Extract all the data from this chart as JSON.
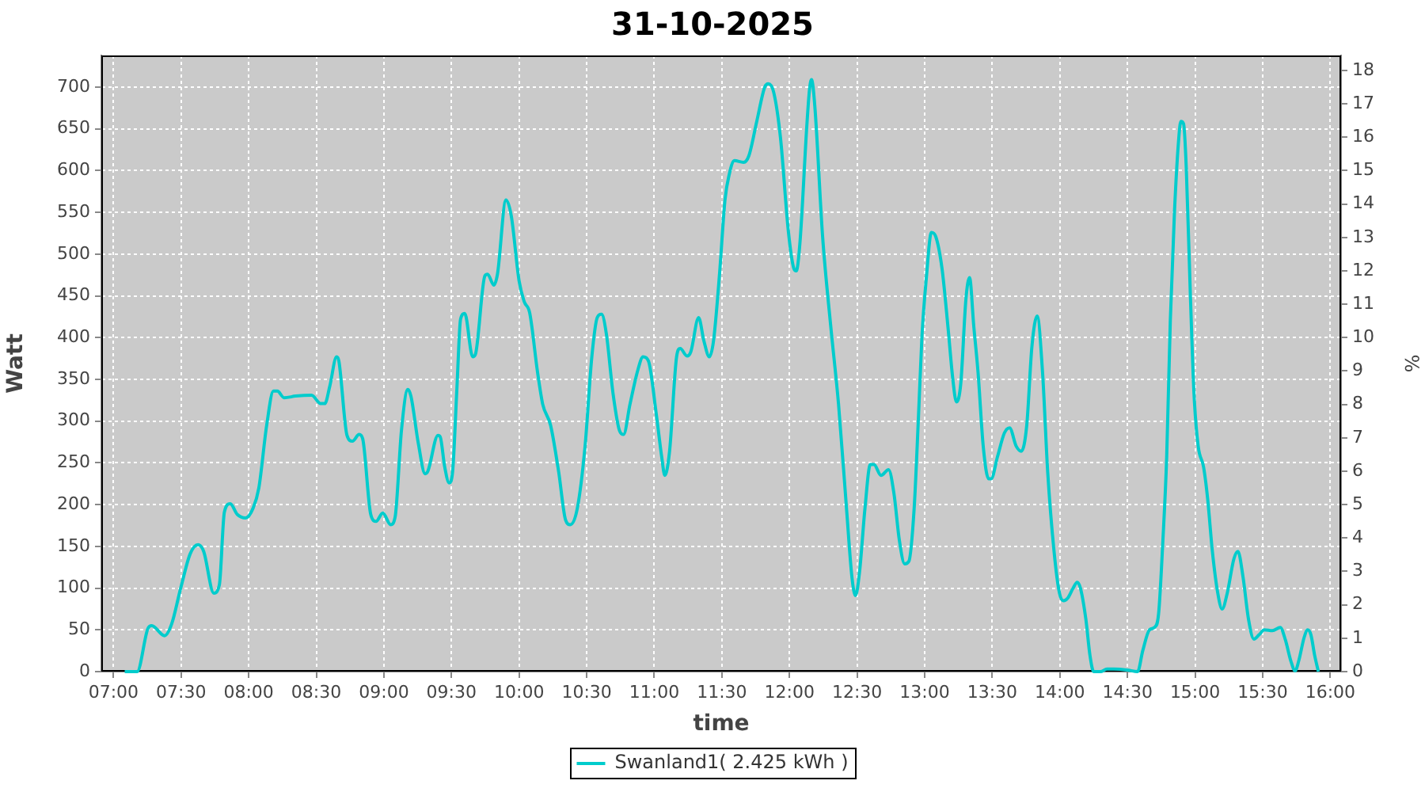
{
  "chart_data": {
    "type": "line",
    "title": "31-10-2025",
    "xlabel": "time",
    "ylabel": "Watt",
    "y2label": "%",
    "x": [
      7.083,
      7.175,
      7.253,
      7.283,
      7.378,
      7.43,
      7.497,
      7.567,
      7.625,
      7.667,
      7.742,
      7.783,
      7.82,
      7.863,
      7.917,
      7.977,
      8.033,
      8.075,
      8.133,
      8.183,
      8.212,
      8.262,
      8.348,
      8.465,
      8.533,
      8.563,
      8.6,
      8.65,
      8.667,
      8.727,
      8.767,
      8.817,
      8.843,
      8.903,
      8.942,
      8.992,
      9.05,
      9.083,
      9.13,
      9.177,
      9.2,
      9.255,
      9.305,
      9.325,
      9.4,
      9.417,
      9.45,
      9.483,
      9.508,
      9.54,
      9.567,
      9.598,
      9.657,
      9.677,
      9.747,
      9.767,
      9.813,
      9.84,
      9.903,
      9.942,
      10,
      10.038,
      10.078,
      10.137,
      10.175,
      10.233,
      10.293,
      10.343,
      10.378,
      10.43,
      10.488,
      10.538,
      10.578,
      10.61,
      10.645,
      10.695,
      10.742,
      10.773,
      10.82,
      10.878,
      10.917,
      10.957,
      11.015,
      11.055,
      11.078,
      11.113,
      11.165,
      11.192,
      11.242,
      11.27,
      11.328,
      11.367,
      11.407,
      11.438,
      11.483,
      11.523,
      11.555,
      11.593,
      11.66,
      11.7,
      11.758,
      11.817,
      11.843,
      11.883,
      11.933,
      11.992,
      12.032,
      12.05,
      12.078,
      12.128,
      12.148,
      12.163,
      12.187,
      12.245,
      12.305,
      12.363,
      12.422,
      12.462,
      12.488,
      12.518,
      12.558,
      12.598,
      12.625,
      12.677,
      12.733,
      12.773,
      12.813,
      12.852,
      12.883,
      12.922,
      12.953,
      12.98,
      13.012,
      13.05,
      13.082,
      13.128,
      13.175,
      13.207,
      13.235,
      13.267,
      13.305,
      13.332,
      13.363,
      13.395,
      13.433,
      13.473,
      13.492,
      13.538,
      13.59,
      13.628,
      13.677,
      13.715,
      13.755,
      13.793,
      13.832,
      13.872,
      13.91,
      13.957,
      13.997,
      14.027,
      14.058,
      14.098,
      14.128,
      14.152,
      14.192,
      14.223,
      14.25,
      14.3,
      14.348,
      14.4,
      14.497,
      14.575,
      14.613,
      14.662,
      14.7,
      14.73,
      14.762,
      14.79,
      14.817,
      14.848,
      14.88,
      14.895,
      14.915,
      14.935,
      14.965,
      14.992,
      15.023,
      15.063,
      15.093,
      15.128,
      15.168,
      15.2,
      15.238,
      15.287,
      15.317,
      15.355,
      15.395,
      15.435,
      15.473,
      15.512,
      15.572,
      15.63,
      15.668,
      15.708,
      15.74,
      15.767,
      15.807,
      15.833,
      15.857,
      15.885,
      15.912
    ],
    "series": [
      {
        "name": "Swanland1( 2.425 kWh )",
        "color": "#00cccc",
        "values": [
          0,
          0,
          51,
          55,
          43,
          57,
          100,
          141,
          152,
          144,
          94,
          104,
          191,
          201,
          188,
          184,
          196,
          220,
          295,
          336,
          336,
          328,
          330,
          331,
          321,
          321,
          342,
          377,
          372,
          283,
          276,
          284,
          279,
          188,
          180,
          190,
          176,
          185,
          289,
          338,
          330,
          273,
          237,
          240,
          283,
          281,
          245,
          226,
          239,
          339,
          422,
          429,
          377,
          380,
          474,
          476,
          463,
          476,
          565,
          546,
          468,
          443,
          430,
          358,
          320,
          295,
          239,
          182,
          176,
          195,
          270,
          377,
          424,
          428,
          405,
          333,
          289,
          284,
          320,
          361,
          377,
          372,
          308,
          257,
          235,
          264,
          377,
          387,
          378,
          383,
          424,
          396,
          377,
          396,
          477,
          565,
          596,
          612,
          610,
          618,
          659,
          700,
          704,
          694,
          640,
          527,
          483,
          480,
          515,
          653,
          697,
          709,
          678,
          521,
          414,
          320,
          195,
          113,
          91,
          119,
          195,
          248,
          248,
          235,
          242,
          213,
          157,
          129,
          132,
          195,
          301,
          402,
          471,
          526,
          521,
          483,
          408,
          352,
          323,
          345,
          446,
          472,
          414,
          358,
          270,
          231,
          231,
          257,
          286,
          292,
          270,
          264,
          295,
          389,
          426,
          358,
          239,
          144,
          94,
          85,
          88,
          100,
          107,
          100,
          63,
          19,
          0,
          0,
          3,
          3,
          2,
          0,
          25,
          50,
          53,
          69,
          157,
          257,
          421,
          552,
          640,
          659,
          656,
          603,
          452,
          333,
          270,
          245,
          207,
          144,
          94,
          75,
          94,
          135,
          144,
          113,
          63,
          39,
          44,
          50,
          49,
          53,
          38,
          13,
          1,
          13,
          41,
          50,
          44,
          19,
          0
        ]
      }
    ],
    "xlim": [
      6.91,
      16.08
    ],
    "xticks": [
      {
        "value": 7,
        "label": "07:00"
      },
      {
        "value": 7.5,
        "label": "07:30"
      },
      {
        "value": 8,
        "label": "08:00"
      },
      {
        "value": 8.5,
        "label": "08:30"
      },
      {
        "value": 9,
        "label": "09:00"
      },
      {
        "value": 9.5,
        "label": "09:30"
      },
      {
        "value": 10,
        "label": "10:00"
      },
      {
        "value": 10.5,
        "label": "10:30"
      },
      {
        "value": 11,
        "label": "11:00"
      },
      {
        "value": 11.5,
        "label": "11:30"
      },
      {
        "value": 12,
        "label": "12:00"
      },
      {
        "value": 12.5,
        "label": "12:30"
      },
      {
        "value": 13,
        "label": "13:00"
      },
      {
        "value": 13.5,
        "label": "13:30"
      },
      {
        "value": 14,
        "label": "14:00"
      },
      {
        "value": 14.5,
        "label": "14:30"
      },
      {
        "value": 15,
        "label": "15:00"
      },
      {
        "value": 15.5,
        "label": "15:30"
      },
      {
        "value": 16,
        "label": "16:00"
      }
    ],
    "ylim": [
      0,
      738
    ],
    "yticks": [
      0,
      50,
      100,
      150,
      200,
      250,
      300,
      350,
      400,
      450,
      500,
      550,
      600,
      650,
      700
    ],
    "y2lim": [
      0,
      18.45
    ],
    "y2ticks": [
      0,
      1,
      2,
      3,
      4,
      5,
      6,
      7,
      8,
      9,
      10,
      11,
      12,
      13,
      14,
      15,
      16,
      17,
      18
    ],
    "grid": true,
    "legend": "bottom"
  }
}
